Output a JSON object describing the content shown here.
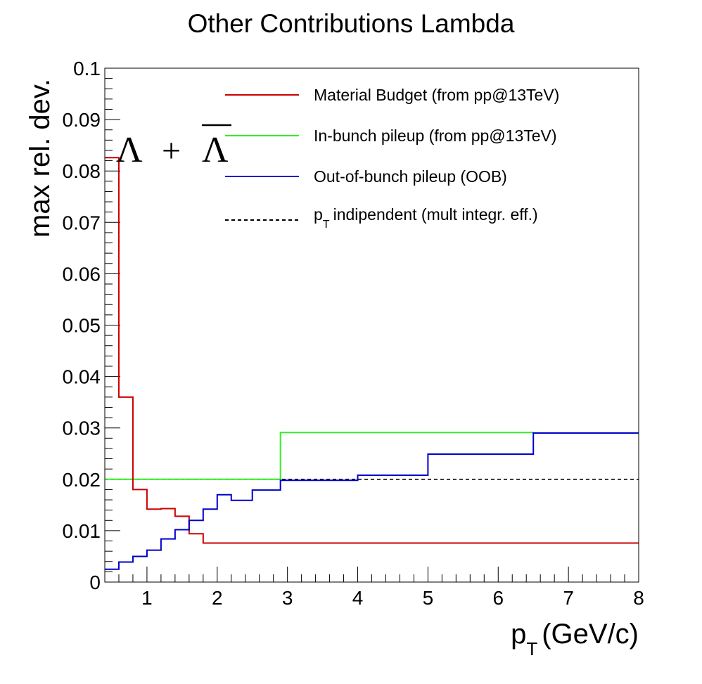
{
  "chart_data": {
    "type": "line",
    "title": "Other Contributions Lambda",
    "xlabel": "p",
    "xlabel_sub": "T",
    "xlabel_unit": "(GeV/c)",
    "ylabel": "max rel. dev.",
    "xlim": [
      0.4,
      8
    ],
    "ylim": [
      0,
      0.1
    ],
    "x_ticks": [
      1,
      2,
      3,
      4,
      5,
      6,
      7,
      8
    ],
    "y_ticks": [
      0,
      0.01,
      0.02,
      0.03,
      0.04,
      0.05,
      0.06,
      0.07,
      0.08,
      0.09,
      0.1
    ],
    "y_tick_labels": [
      "0",
      "0.01",
      "0.02",
      "0.03",
      "0.04",
      "0.05",
      "0.06",
      "0.07",
      "0.08",
      "0.09",
      "0.1"
    ],
    "annotation": {
      "particle": "Λ",
      "plus": "+",
      "anti": "Λ"
    },
    "legend_position": "top-right",
    "series": [
      {
        "name": "Material Budget (from pp@13TeV)",
        "color": "#cc0000",
        "style": "solid",
        "bin_edges": [
          0.4,
          0.6,
          0.8,
          1.0,
          1.2,
          1.4,
          1.6,
          1.8,
          8.0
        ],
        "values": [
          0.0826,
          0.036,
          0.018,
          0.0142,
          0.0143,
          0.0128,
          0.0094,
          0.0076
        ]
      },
      {
        "name": "In-bunch pileup (from pp@13TeV)",
        "color": "#33ee22",
        "style": "solid",
        "bin_edges": [
          0.4,
          2.9,
          6.5,
          8.0
        ],
        "values": [
          0.02,
          0.0291,
          0.029
        ]
      },
      {
        "name": "Out-of-bunch pileup (OOB)",
        "color": "#0000cc",
        "style": "solid",
        "bin_edges": [
          0.4,
          0.6,
          0.8,
          1.0,
          1.2,
          1.4,
          1.6,
          1.8,
          2.0,
          2.2,
          2.5,
          2.9,
          4.0,
          5.0,
          6.5,
          8.0
        ],
        "values": [
          0.0025,
          0.0039,
          0.005,
          0.0062,
          0.0084,
          0.0102,
          0.012,
          0.0142,
          0.017,
          0.0159,
          0.0179,
          0.0198,
          0.0208,
          0.0249,
          0.029
        ]
      },
      {
        "name_main": "p",
        "name_sub": "T",
        "name_rest": "indipendent (mult integr. eff.)",
        "color": "#000000",
        "style": "dashed",
        "bin_edges": [
          0.4,
          8.0
        ],
        "values": [
          0.02
        ]
      }
    ]
  }
}
